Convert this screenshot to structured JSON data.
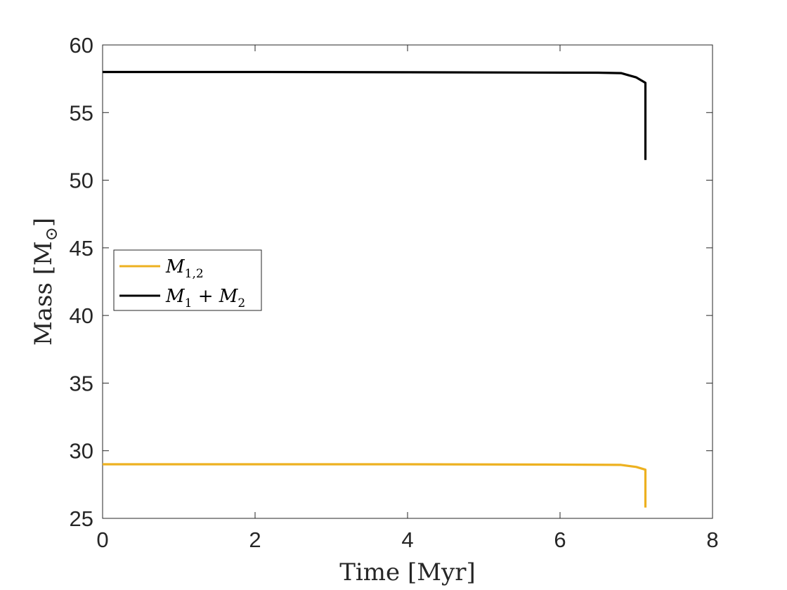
{
  "chart_data": {
    "type": "line",
    "xlabel": "Time [Myr]",
    "ylabel_main": "Mass [M",
    "ylabel_sub": "⊙",
    "ylabel_close": "]",
    "xlim": [
      0,
      8
    ],
    "ylim": [
      25,
      60
    ],
    "xticks": [
      0,
      2,
      4,
      6,
      8
    ],
    "yticks": [
      25,
      30,
      35,
      40,
      45,
      50,
      55,
      60
    ],
    "grid": false,
    "legend_position": "center-left",
    "series": [
      {
        "legend_main": "M",
        "legend_sub": "1,2",
        "color": "#EDB120",
        "x": [
          0,
          2,
          4,
          5.8,
          6.8,
          7.0,
          7.12,
          7.12
        ],
        "y": [
          29.0,
          29.0,
          29.0,
          28.98,
          28.95,
          28.8,
          28.6,
          25.8
        ]
      },
      {
        "legend_main": "M",
        "legend_sub1": "1",
        "legend_plus": " + ",
        "legend_main2": "M",
        "legend_sub2": "2",
        "color": "#000000",
        "x": [
          0,
          0.6,
          2,
          4,
          6.5,
          6.8,
          7.0,
          7.12,
          7.12
        ],
        "y": [
          58.0,
          58.0,
          58.0,
          57.98,
          57.95,
          57.92,
          57.6,
          57.2,
          51.5
        ]
      }
    ]
  }
}
